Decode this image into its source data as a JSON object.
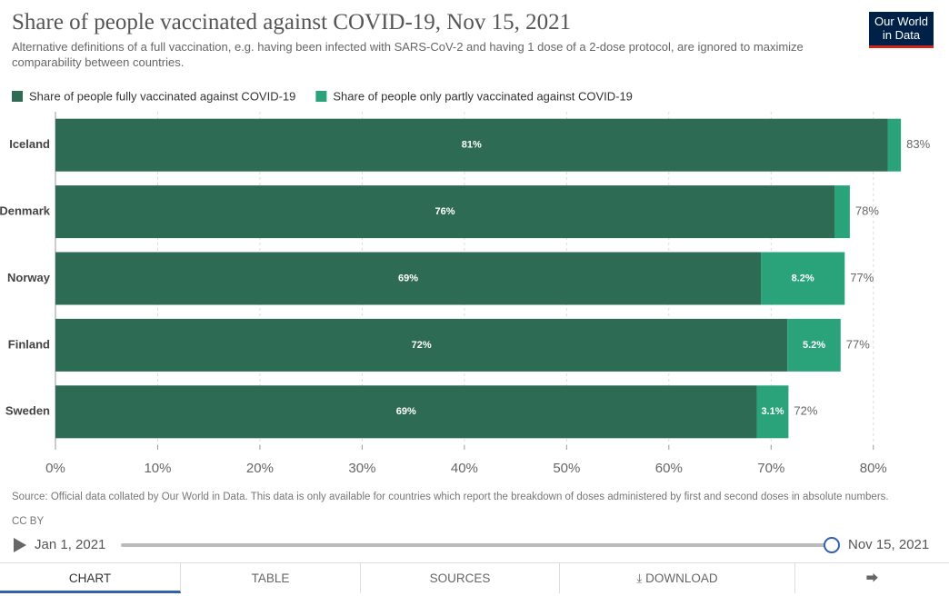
{
  "chart_data": {
    "type": "stacked-bar-horizontal",
    "title": "Share of people vaccinated against COVID-19, Nov 15, 2021",
    "subtitle": "Alternative definitions of a full vaccination, e.g. having been infected with SARS-CoV-2 and having 1 dose of a 2-dose protocol, are ignored to maximize comparability between countries.",
    "categories": [
      "Iceland",
      "Denmark",
      "Norway",
      "Finland",
      "Sweden"
    ],
    "series": [
      {
        "name": "Share of people fully vaccinated against COVID-19",
        "color": "#2e6b55",
        "values": [
          81.4,
          76.2,
          69.0,
          71.6,
          68.6
        ],
        "value_labels": [
          "81%",
          "76%",
          "69%",
          "72%",
          "69%"
        ]
      },
      {
        "name": "Share of people only partly vaccinated against COVID-19",
        "color": "#2aa37b",
        "values": [
          1.3,
          1.5,
          8.2,
          5.2,
          3.1
        ],
        "value_labels": [
          null,
          null,
          "8.2%",
          "5.2%",
          "3.1%"
        ]
      }
    ],
    "totals": [
      83,
      78,
      77,
      77,
      72
    ],
    "total_labels": [
      "83%",
      "78%",
      "77%",
      "77%",
      "72%"
    ],
    "xlim": [
      0,
      85
    ],
    "xticks": [
      {
        "value": 0,
        "label": "0%"
      },
      {
        "value": 10,
        "label": "10%"
      },
      {
        "value": 20,
        "label": "20%"
      },
      {
        "value": 30,
        "label": "30%"
      },
      {
        "value": 40,
        "label": "40%"
      },
      {
        "value": 50,
        "label": "50%"
      },
      {
        "value": 60,
        "label": "60%"
      },
      {
        "value": 70,
        "label": "70%"
      },
      {
        "value": 80,
        "label": "80%"
      }
    ],
    "grid": true,
    "legend": "top-left",
    "source": "Source: Official data collated by Our World in Data. This data is only available for countries which report the breakdown of doses administered by first and second doses in absolute numbers.",
    "license": "CC BY"
  },
  "logo": "Our World in Data",
  "timeline": {
    "start": "Jan 1, 2021",
    "end": "Nov 15, 2021"
  },
  "tabs": [
    "CHART",
    "TABLE",
    "SOURCES",
    "DOWNLOAD"
  ]
}
